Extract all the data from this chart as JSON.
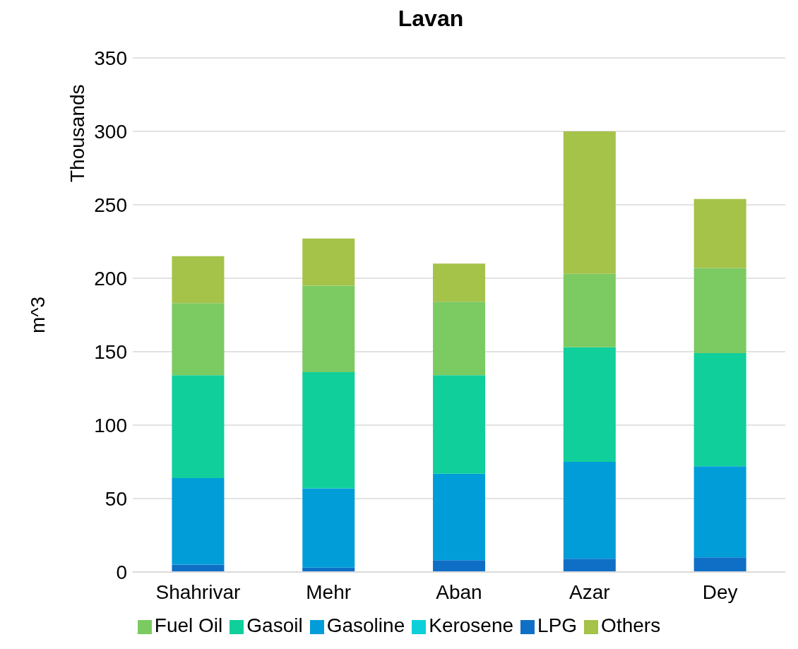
{
  "chart_data": {
    "type": "bar",
    "title": "Lavan",
    "ylabel": "m^3",
    "annotations": [
      "Thousands"
    ],
    "stacked": true,
    "categories": [
      "Shahrivar",
      "Mehr",
      "Aban",
      "Azar",
      "Dey"
    ],
    "series": [
      {
        "name": "LPG",
        "color": "#0f6fc6",
        "values": [
          5,
          3,
          8,
          9,
          10
        ]
      },
      {
        "name": "Gasoline",
        "color": "#009dd9",
        "values": [
          59,
          54,
          59,
          66,
          62
        ]
      },
      {
        "name": "Kerosene",
        "color": "#0bd0d9",
        "values": [
          0,
          0,
          0,
          0,
          0
        ]
      },
      {
        "name": "Gasoil",
        "color": "#10cf9b",
        "values": [
          70,
          79,
          67,
          78,
          77
        ]
      },
      {
        "name": "Fuel Oil",
        "color": "#7cca62",
        "values": [
          49,
          59,
          50,
          50,
          58
        ]
      },
      {
        "name": "Others",
        "color": "#a5c249",
        "values": [
          32,
          32,
          26,
          97,
          47
        ]
      }
    ],
    "ylim": [
      0,
      350
    ],
    "yticks": [
      0,
      50,
      100,
      150,
      200,
      250,
      300,
      350
    ],
    "grid": "y",
    "legend": "bottom"
  }
}
